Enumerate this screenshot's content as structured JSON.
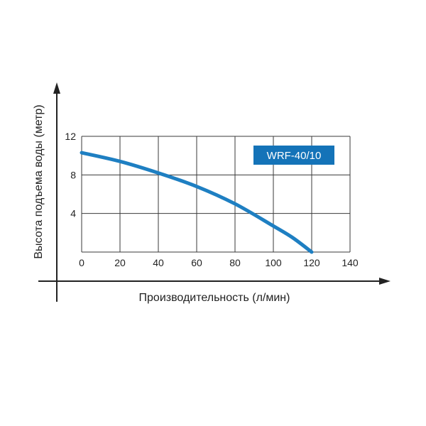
{
  "chart_data": {
    "type": "line",
    "xlabel": "Производительность (л/мин)",
    "ylabel": "Высота подъема воды (метр)",
    "x_ticks": [
      "0",
      "20",
      "40",
      "60",
      "80",
      "100",
      "120",
      "140"
    ],
    "y_ticks": [
      "4",
      "8",
      "12"
    ],
    "xlim": [
      0,
      140
    ],
    "ylim": [
      0,
      12
    ],
    "grid": true,
    "series": [
      {
        "name": "WRF-40/10",
        "color": "#1e7fc2",
        "x": [
          0,
          20,
          40,
          60,
          80,
          100,
          110,
          120
        ],
        "y": [
          10.3,
          9.4,
          8.2,
          6.8,
          5.0,
          2.7,
          1.5,
          0
        ]
      }
    ],
    "label_color": "#1473b8"
  }
}
